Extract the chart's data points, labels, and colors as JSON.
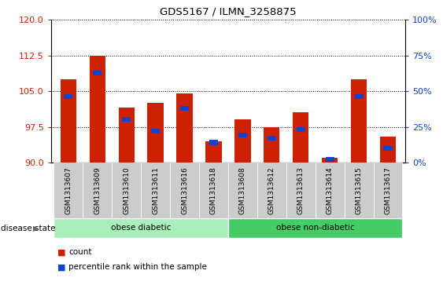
{
  "title": "GDS5167 / ILMN_3258875",
  "samples": [
    "GSM1313607",
    "GSM1313609",
    "GSM1313610",
    "GSM1313611",
    "GSM1313616",
    "GSM1313618",
    "GSM1313608",
    "GSM1313612",
    "GSM1313613",
    "GSM1313614",
    "GSM1313615",
    "GSM1313617"
  ],
  "count_values": [
    107.5,
    112.5,
    101.5,
    102.5,
    104.5,
    94.5,
    99.0,
    97.5,
    100.5,
    91.0,
    107.5,
    95.5
  ],
  "percentile_values": [
    46,
    63,
    30,
    22,
    38,
    14,
    19,
    17,
    23,
    2,
    46,
    10
  ],
  "ylim_left": [
    90,
    120
  ],
  "ylim_right": [
    0,
    100
  ],
  "yticks_left": [
    90,
    97.5,
    105,
    112.5,
    120
  ],
  "yticks_right": [
    0,
    25,
    50,
    75,
    100
  ],
  "bar_color": "#cc2200",
  "percentile_color": "#1144cc",
  "bar_width": 0.55,
  "perc_bar_width": 0.3,
  "perc_bar_height": 1.0,
  "groups": [
    {
      "label": "obese diabetic",
      "start": 0,
      "end": 5,
      "color": "#aaeebb"
    },
    {
      "label": "obese non-diabetic",
      "start": 6,
      "end": 11,
      "color": "#44cc66"
    }
  ],
  "disease_state_label": "disease state",
  "legend_count_label": "count",
  "legend_percentile_label": "percentile rank within the sample",
  "background_color": "#ffffff",
  "tick_label_bg": "#cccccc"
}
